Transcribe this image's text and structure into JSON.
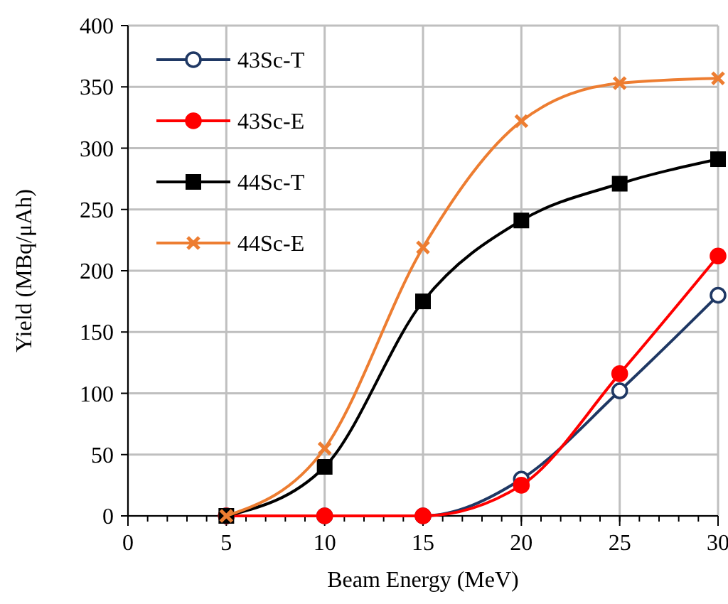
{
  "chart_data": {
    "type": "line",
    "xlabel": "Beam Energy (MeV)",
    "ylabel": "Yield (MBq/μAh)",
    "x": [
      5,
      10,
      15,
      20,
      25,
      30
    ],
    "series": [
      {
        "name": "43Sc-T",
        "color": "#1f3864",
        "marker": "circle",
        "values": [
          0,
          0,
          0,
          30,
          102,
          180
        ]
      },
      {
        "name": "43Sc-E",
        "color": "#ff0000",
        "marker": "circle",
        "values": [
          0,
          0,
          0,
          25,
          116,
          212
        ]
      },
      {
        "name": "44Sc-T",
        "color": "#000000",
        "marker": "square",
        "values": [
          0,
          40,
          175,
          241,
          271,
          291
        ]
      },
      {
        "name": "44Sc-E",
        "color": "#ed7d31",
        "marker": "cross",
        "values": [
          0,
          55,
          219,
          322,
          353,
          357
        ]
      }
    ],
    "xlim": [
      0,
      30
    ],
    "xticks": [
      0,
      5,
      10,
      15,
      20,
      25,
      30
    ],
    "ylim": [
      0,
      400
    ],
    "yticks": [
      0,
      50,
      100,
      150,
      200,
      250,
      300,
      350,
      400
    ],
    "grid": true,
    "legend": "top left"
  }
}
